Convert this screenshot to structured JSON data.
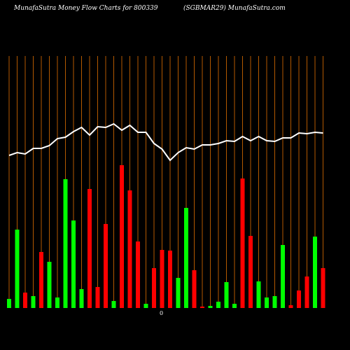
{
  "chart_data": {
    "type": "bar",
    "title": "MunafaSutra  Money Flow  Charts for 800339",
    "subtitle": "(SGBMAR29) MunafaSutra.com",
    "zero_label": "0",
    "categories": [
      null,
      null,
      null,
      null,
      null,
      null,
      null,
      null,
      null,
      null,
      null,
      null,
      null,
      null,
      null,
      null,
      null,
      null,
      null,
      null,
      null,
      null,
      null,
      null,
      null,
      null,
      null,
      null,
      null,
      null,
      null,
      null,
      null,
      null,
      null,
      null,
      null,
      null,
      null,
      null
    ],
    "series": [
      {
        "name": "Money flow",
        "colors": [
          "#00ff00",
          "#00ff00",
          "#ff0000",
          "#00ff00",
          "#ff0000",
          "#00ff00",
          "#00ff00",
          "#00ff00",
          "#00ff00",
          "#00ff00",
          "#ff0000",
          "#ff0000",
          "#ff0000",
          "#00ff00",
          "#ff0000",
          "#ff0000",
          "#ff0000",
          "#00ff00",
          "#ff0000",
          "#ff0000",
          "#ff0000",
          "#00ff00",
          "#00ff00",
          "#ff0000",
          "#ff0000",
          "#00ff00",
          "#00ff00",
          "#00ff00",
          "#00ff00",
          "#ff0000",
          "#ff0000",
          "#00ff00",
          "#00ff00",
          "#00ff00",
          "#00ff00",
          "#ff0000",
          "#ff0000",
          "#ff0000",
          "#00ff00",
          "#ff0000"
        ],
        "values": [
          13,
          112,
          22,
          17,
          80,
          66,
          15,
          184,
          125,
          27,
          170,
          30,
          120,
          10,
          204,
          168,
          95,
          6,
          57,
          83,
          82,
          43,
          143,
          54,
          2,
          3,
          9,
          37,
          6,
          185,
          103,
          38,
          15,
          17,
          90,
          4,
          25,
          45,
          102,
          57
        ]
      },
      {
        "name": "Price",
        "color": "#ffffff",
        "values": [
          218,
          222,
          220,
          228,
          228,
          232,
          242,
          244,
          252,
          258,
          247,
          259,
          258,
          263,
          254,
          261,
          251,
          251,
          235,
          227,
          211,
          222,
          229,
          227,
          233,
          233,
          235,
          239,
          238,
          245,
          239,
          245,
          239,
          238,
          243,
          243,
          250,
          249,
          251,
          250
        ]
      }
    ],
    "ylim": [
      0,
      360
    ],
    "vline_color": "#b35900"
  }
}
